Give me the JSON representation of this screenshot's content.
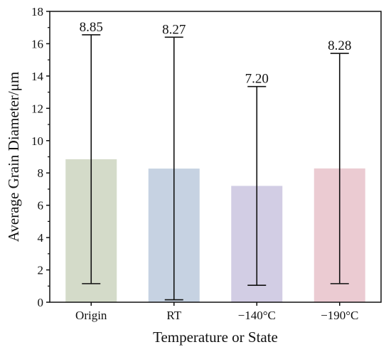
{
  "chart_data": {
    "type": "bar",
    "title": "",
    "xlabel": "Temperature or State",
    "ylabel": "Average Grain Diameter/μm",
    "categories": [
      "Origin",
      "RT",
      "−140°C",
      "−190°C"
    ],
    "values": [
      8.85,
      8.27,
      7.2,
      8.28
    ],
    "value_labels": [
      "8.85",
      "8.27",
      "7.20",
      "8.28"
    ],
    "error_low": [
      1.15,
      0.15,
      1.05,
      1.15
    ],
    "error_high": [
      16.55,
      16.4,
      13.35,
      15.4
    ],
    "colors": [
      "#d4dbc9",
      "#c6d2e2",
      "#d2cde4",
      "#ebcbd2"
    ],
    "ylim": [
      0,
      18
    ],
    "yticks": [
      0,
      2,
      4,
      6,
      8,
      10,
      12,
      14,
      16,
      18
    ],
    "ytick_labels": [
      "0",
      "2",
      "4",
      "6",
      "8",
      "10",
      "12",
      "14",
      "16",
      "18"
    ],
    "grid": false,
    "legend": "none"
  }
}
